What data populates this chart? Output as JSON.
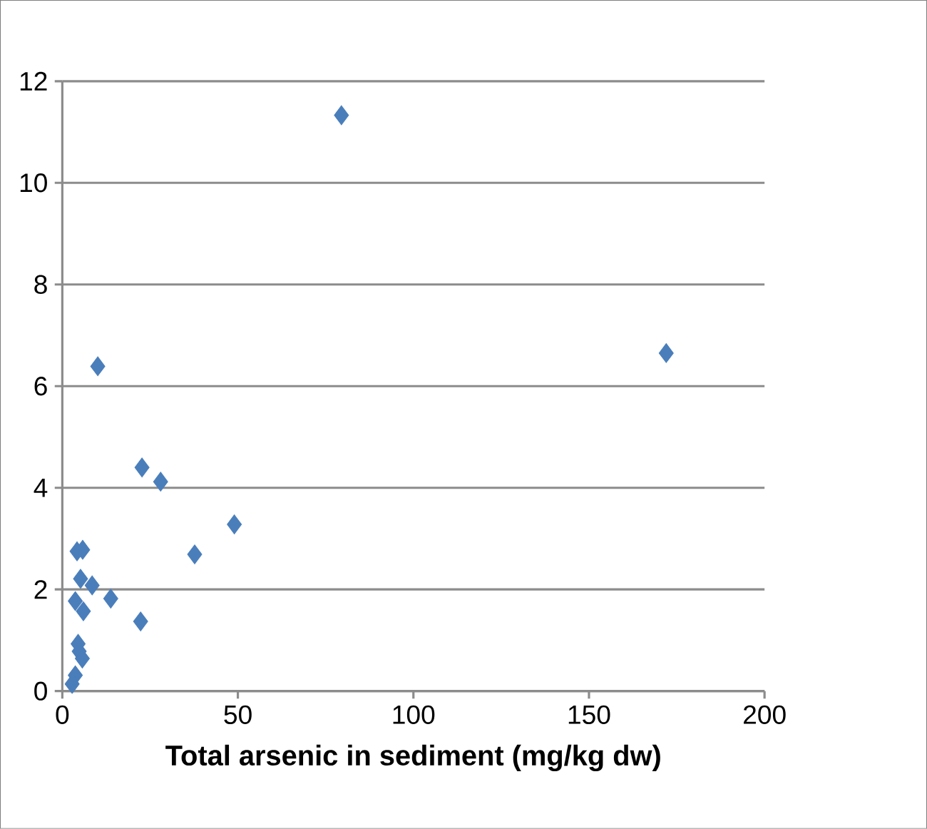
{
  "chart_data": {
    "type": "scatter",
    "xlabel": "Total arsenic in sediment (mg/kg dw)",
    "x": [
      79.5,
      172,
      10.1,
      22.7,
      28,
      49,
      37.7,
      4.2,
      5.8,
      5.2,
      8.5,
      13.8,
      3.7,
      6,
      22.3,
      4.5,
      4.8,
      5.7,
      3.7,
      2.8
    ],
    "values": [
      11.33,
      6.65,
      6.39,
      4.4,
      4.12,
      3.28,
      2.69,
      2.75,
      2.78,
      2.21,
      2.08,
      1.82,
      1.77,
      1.57,
      1.37,
      0.93,
      0.78,
      0.64,
      0.31,
      0.14
    ],
    "color": "#4a7ebb",
    "marker": "diamond",
    "grid": "y",
    "xlim": [
      0,
      200
    ],
    "xticks": [
      0,
      50,
      100,
      150,
      200
    ],
    "ylim": [
      0,
      12
    ],
    "yticks": [
      0,
      2,
      4,
      6,
      8,
      10,
      12
    ]
  }
}
